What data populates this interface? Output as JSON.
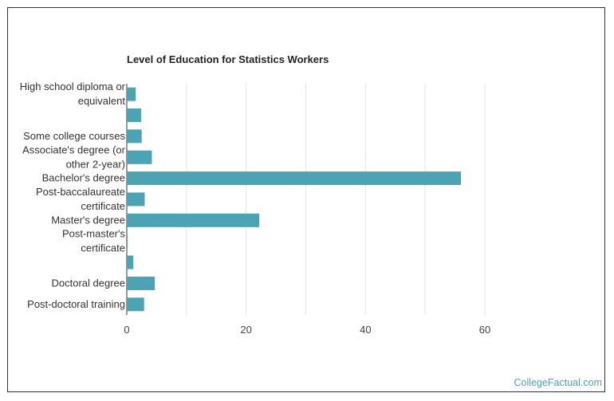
{
  "chart_data": {
    "type": "bar",
    "orientation": "horizontal",
    "title": "Level of Education for Statistics Workers",
    "xlabel": "",
    "ylabel": "",
    "categories": [
      [
        "High school diploma or",
        "equivalent"
      ],
      [
        ""
      ],
      [
        "Some college courses"
      ],
      [
        "Associate's degree (or",
        "other 2-year)"
      ],
      [
        "Bachelor's degree"
      ],
      [
        "Post-baccalaureate",
        "certificate"
      ],
      [
        "Master's degree"
      ],
      [
        "Post-master's",
        "certificate"
      ],
      [
        ""
      ],
      [
        "Doctoral degree"
      ],
      [
        "Post-doctoral training"
      ]
    ],
    "values": [
      1.5,
      2.4,
      2.5,
      4.2,
      56,
      3.0,
      22.2,
      0.15,
      1.1,
      4.7,
      2.9
    ],
    "xlim": [
      0,
      70
    ],
    "xticks": [
      0,
      20,
      40,
      60
    ],
    "grid": true,
    "bar_color": "#4ba3b3",
    "grid_color": "#e6e6e6"
  },
  "source": "CollegeFactual.com"
}
